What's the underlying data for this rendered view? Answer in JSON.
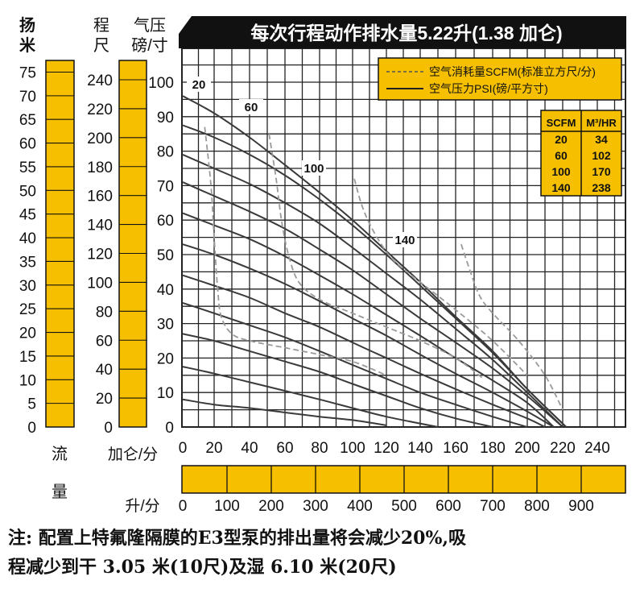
{
  "chart_data": {
    "type": "line",
    "title": "每次行程动作排水量5.22升(1.38 加仑)",
    "x_label_gpm": "加仑/分",
    "x_label_lpm": "升/分",
    "y_label_m": [
      "扬",
      "米"
    ],
    "y_label_ft": [
      "程",
      "尺"
    ],
    "y_label_psi": [
      "气压",
      "磅/寸"
    ],
    "flow_label": [
      "流",
      "量"
    ],
    "x_ticks_gpm": [
      "0",
      "20",
      "40",
      "60",
      "80",
      "100",
      "120",
      "140",
      "160",
      "180",
      "200",
      "220",
      "240"
    ],
    "x_ticks_lpm": [
      "0",
      "100",
      "200",
      "300",
      "400",
      "500",
      "600",
      "700",
      "800",
      "900"
    ],
    "y_ticks_psi": [
      "0",
      "10",
      "20",
      "30",
      "40",
      "50",
      "60",
      "70",
      "80",
      "90",
      "100"
    ],
    "y_ticks_m": [
      "0",
      "5",
      "10",
      "15",
      "20",
      "25",
      "30",
      "35",
      "40",
      "45",
      "50",
      "55",
      "60",
      "65",
      "70",
      "75"
    ],
    "y_ticks_ft": [
      "0",
      "20",
      "40",
      "60",
      "80",
      "100",
      "120",
      "140",
      "160",
      "180",
      "200",
      "220",
      "240"
    ],
    "xlim_gpm": [
      0,
      240
    ],
    "ylim_psi": [
      0,
      100
    ],
    "grid": true,
    "legend": {
      "placement": "top-right",
      "air_consumption": "空气消耗量SCFM(标准立方尺/分)",
      "air_pressure": "空气压力PSI(磅/平方寸)"
    },
    "scfm_table": {
      "headers": [
        "SCFM",
        "M³/HR"
      ],
      "rows": [
        [
          "20",
          "34"
        ],
        [
          "60",
          "102"
        ],
        [
          "100",
          "170"
        ],
        [
          "140",
          "238"
        ]
      ]
    },
    "air_consumption_labels": [
      "20",
      "60",
      "100",
      "140"
    ],
    "pressure_curves": [
      {
        "psi": 10,
        "points": [
          [
            0,
            8
          ],
          [
            20,
            6.5
          ],
          [
            40,
            5.5
          ],
          [
            60,
            4.2
          ],
          [
            80,
            3
          ],
          [
            100,
            2
          ],
          [
            120,
            0.5
          ]
        ]
      },
      {
        "psi": 20,
        "points": [
          [
            0,
            17.5
          ],
          [
            20,
            15.5
          ],
          [
            40,
            13
          ],
          [
            60,
            10.5
          ],
          [
            80,
            8
          ],
          [
            100,
            5.5
          ],
          [
            120,
            3
          ],
          [
            150,
            0
          ]
        ]
      },
      {
        "psi": 30,
        "points": [
          [
            0,
            27
          ],
          [
            20,
            25
          ],
          [
            40,
            22
          ],
          [
            60,
            19
          ],
          [
            80,
            16
          ],
          [
            100,
            12.5
          ],
          [
            120,
            9
          ],
          [
            140,
            5.5
          ],
          [
            160,
            2.5
          ],
          [
            180,
            0
          ]
        ]
      },
      {
        "psi": 40,
        "points": [
          [
            0,
            36
          ],
          [
            20,
            33
          ],
          [
            40,
            29.5
          ],
          [
            60,
            26
          ],
          [
            80,
            22
          ],
          [
            100,
            18
          ],
          [
            120,
            14
          ],
          [
            140,
            10
          ],
          [
            160,
            6.5
          ],
          [
            180,
            3
          ],
          [
            200,
            0
          ]
        ]
      },
      {
        "psi": 50,
        "points": [
          [
            0,
            44
          ],
          [
            20,
            41
          ],
          [
            40,
            37.5
          ],
          [
            60,
            33
          ],
          [
            80,
            29
          ],
          [
            100,
            24.5
          ],
          [
            120,
            20
          ],
          [
            140,
            15.5
          ],
          [
            160,
            11
          ],
          [
            180,
            6.5
          ],
          [
            200,
            2.5
          ],
          [
            210,
            0
          ]
        ]
      },
      {
        "psi": 60,
        "points": [
          [
            0,
            53
          ],
          [
            20,
            50
          ],
          [
            40,
            46
          ],
          [
            60,
            41.5
          ],
          [
            80,
            36.5
          ],
          [
            100,
            31.5
          ],
          [
            120,
            26.5
          ],
          [
            140,
            21
          ],
          [
            160,
            15.5
          ],
          [
            180,
            10
          ],
          [
            200,
            4.5
          ],
          [
            215,
            0
          ]
        ]
      },
      {
        "psi": 70,
        "points": [
          [
            0,
            62
          ],
          [
            20,
            58.5
          ],
          [
            40,
            54.5
          ],
          [
            60,
            49.5
          ],
          [
            80,
            44
          ],
          [
            100,
            38.5
          ],
          [
            120,
            32.5
          ],
          [
            140,
            26.5
          ],
          [
            160,
            20
          ],
          [
            180,
            13.5
          ],
          [
            200,
            7
          ],
          [
            215,
            0
          ]
        ]
      },
      {
        "psi": 80,
        "points": [
          [
            0,
            71
          ],
          [
            20,
            67
          ],
          [
            40,
            62.5
          ],
          [
            60,
            57.5
          ],
          [
            80,
            51.5
          ],
          [
            100,
            45.5
          ],
          [
            120,
            38.5
          ],
          [
            140,
            31.5
          ],
          [
            160,
            24.5
          ],
          [
            180,
            17
          ],
          [
            200,
            9
          ],
          [
            220,
            0
          ]
        ]
      },
      {
        "psi": 90,
        "points": [
          [
            0,
            79
          ],
          [
            20,
            75
          ],
          [
            40,
            70.5
          ],
          [
            60,
            65
          ],
          [
            80,
            59
          ],
          [
            100,
            52
          ],
          [
            120,
            44.5
          ],
          [
            140,
            37
          ],
          [
            160,
            28.5
          ],
          [
            180,
            19.5
          ],
          [
            200,
            10
          ],
          [
            220,
            0
          ]
        ]
      },
      {
        "psi": 100,
        "points": [
          [
            0,
            87.5
          ],
          [
            20,
            84
          ],
          [
            40,
            79
          ],
          [
            60,
            73
          ],
          [
            80,
            66
          ],
          [
            100,
            58.5
          ],
          [
            120,
            50
          ],
          [
            140,
            41
          ],
          [
            160,
            31.5
          ],
          [
            180,
            21.5
          ],
          [
            200,
            11
          ],
          [
            222,
            0
          ]
        ]
      },
      {
        "psi": 110,
        "points": [
          [
            0,
            96
          ],
          [
            20,
            91
          ],
          [
            40,
            84
          ],
          [
            60,
            76
          ],
          [
            80,
            68
          ],
          [
            100,
            60
          ],
          [
            120,
            51
          ],
          [
            140,
            42
          ],
          [
            160,
            32
          ],
          [
            180,
            22
          ],
          [
            200,
            11
          ],
          [
            222,
            0
          ]
        ]
      }
    ],
    "air_consumption_curves": [
      {
        "scfm": 20,
        "points": [
          [
            14,
            87
          ],
          [
            18,
            70
          ],
          [
            20,
            55
          ],
          [
            22,
            40
          ],
          [
            24,
            32
          ],
          [
            30,
            27
          ],
          [
            40,
            25
          ],
          [
            60,
            23
          ],
          [
            80,
            21
          ],
          [
            100,
            19
          ],
          [
            120,
            15
          ]
        ]
      },
      {
        "scfm": 60,
        "points": [
          [
            51,
            85
          ],
          [
            55,
            72
          ],
          [
            58,
            60
          ],
          [
            62,
            50
          ],
          [
            68,
            42
          ],
          [
            80,
            37
          ],
          [
            100,
            33
          ],
          [
            120,
            29
          ],
          [
            140,
            25
          ],
          [
            160,
            20
          ],
          [
            175,
            14
          ]
        ]
      },
      {
        "scfm": 100,
        "points": [
          [
            101,
            72
          ],
          [
            105,
            65
          ],
          [
            110,
            59
          ],
          [
            117,
            53
          ],
          [
            125,
            48
          ],
          [
            140,
            42
          ],
          [
            160,
            34
          ],
          [
            180,
            25
          ],
          [
            200,
            15
          ]
        ]
      },
      {
        "scfm": 140,
        "points": [
          [
            163,
            53
          ],
          [
            168,
            45
          ],
          [
            173,
            38
          ],
          [
            180,
            33
          ],
          [
            195,
            25
          ],
          [
            210,
            15
          ],
          [
            220,
            5
          ]
        ]
      }
    ]
  },
  "note_line1": "注: 配置上特氟隆隔膜的E3型泵的排出量将会减少20%,吸",
  "note_line2": "程减少到干 3.05 米(10尺)及湿 6.10 米(20尺)",
  "colors": {
    "bar_fill": "#f6c000",
    "title_bg": "#111111",
    "title_fg": "#ffffff",
    "legend_fill": "#f6c000",
    "line": "#3a3a3a",
    "dashed": "#9a9a9a",
    "grid": "#222222"
  }
}
